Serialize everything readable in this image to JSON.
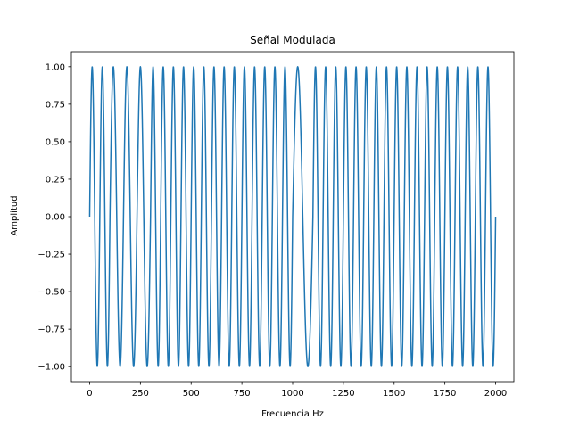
{
  "chart_data": {
    "type": "line",
    "title": "Señal Modulada",
    "xlabel": "Frecuencia Hz",
    "ylabel": "Amplitud",
    "xlim": [
      -90,
      2090
    ],
    "ylim": [
      -1.1,
      1.1
    ],
    "xticks": [
      0,
      250,
      500,
      750,
      1000,
      1250,
      1500,
      1750,
      2000
    ],
    "xtick_labels": [
      "0",
      "250",
      "500",
      "750",
      "1000",
      "1250",
      "1500",
      "1750",
      "2000"
    ],
    "yticks": [
      -1.0,
      -0.75,
      -0.5,
      -0.25,
      0.0,
      0.25,
      0.5,
      0.75,
      1.0
    ],
    "ytick_labels": [
      "−1.00",
      "−0.75",
      "−0.50",
      "−0.25",
      "0.00",
      "0.25",
      "0.50",
      "0.75",
      "1.00"
    ],
    "grid": false,
    "series": [
      {
        "color": "#1f77b4",
        "description_points": "piecewise sinusoid sampled from 0 to 2000 Hz; segments switch between low and high frequency at the listed boundaries",
        "segments": [
          {
            "x_start": 0,
            "x_end": 100,
            "frequency": 0.02,
            "phase": 0
          },
          {
            "x_start": 100,
            "x_end": 300,
            "frequency": 0.015,
            "phase": 0
          },
          {
            "x_start": 300,
            "x_end": 400,
            "frequency": 0.02,
            "phase": 0
          },
          {
            "x_start": 400,
            "x_end": 1000,
            "frequency": 0.02,
            "phase": 0
          },
          {
            "x_start": 1000,
            "x_end": 1100,
            "frequency": 0.01,
            "phase": 0
          },
          {
            "x_start": 1100,
            "x_end": 1600,
            "frequency": 0.02,
            "phase": 0
          },
          {
            "x_start": 1600,
            "x_end": 2000,
            "frequency": 0.02,
            "phase": 0
          }
        ]
      }
    ]
  }
}
